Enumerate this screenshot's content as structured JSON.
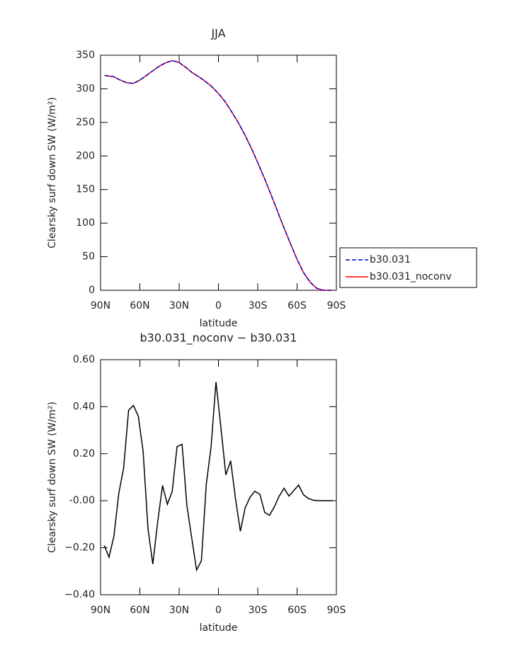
{
  "chart_data": [
    {
      "type": "line",
      "title": "JJA",
      "xlabel": "latitude",
      "ylabel": "Clearsky surf down SW (W/m²)",
      "x": [
        87,
        80,
        75,
        70,
        65,
        60,
        55,
        50,
        45,
        40,
        35,
        30,
        25,
        20,
        15,
        10,
        5,
        0,
        -5,
        -10,
        -15,
        -20,
        -25,
        -30,
        -35,
        -40,
        -45,
        -50,
        -55,
        -60,
        -65,
        -70,
        -75,
        -80,
        -87
      ],
      "series": [
        {
          "name": "b30.031",
          "color": "#0000cc",
          "dash": true,
          "values": [
            320,
            318,
            313,
            309,
            308,
            313,
            320,
            327,
            334,
            339,
            342,
            339,
            332,
            324,
            318,
            311,
            303,
            293,
            281,
            266,
            250,
            232,
            212,
            190,
            167,
            143,
            118,
            93,
            69,
            46,
            26,
            12,
            3,
            0,
            0
          ]
        },
        {
          "name": "b30.031_noconv",
          "color": "#ff0000",
          "dash": false,
          "values": [
            320,
            318,
            313,
            309,
            308,
            313,
            320,
            327,
            334,
            339,
            342,
            339,
            332,
            324,
            318,
            311,
            303,
            293,
            281,
            266,
            250,
            232,
            212,
            190,
            167,
            143,
            118,
            93,
            69,
            46,
            26,
            12,
            3,
            0,
            0
          ]
        }
      ],
      "xlim": [
        90,
        -90
      ],
      "xticks": [
        {
          "value": 90,
          "label": "90N"
        },
        {
          "value": 60,
          "label": "60N"
        },
        {
          "value": 30,
          "label": "30N"
        },
        0,
        {
          "value": -30,
          "label": "30S"
        },
        {
          "value": -60,
          "label": "60S"
        },
        {
          "value": -90,
          "label": "90S"
        }
      ],
      "ylim": [
        0,
        350
      ],
      "yticks": [
        0,
        50,
        100,
        150,
        200,
        250,
        300,
        350
      ],
      "legend": "right"
    },
    {
      "type": "line",
      "title": "b30.031_noconv − b30.031",
      "xlabel": "latitude",
      "ylabel": "Clearsky surf down SW (W/m²)",
      "x": [
        87.2,
        83.5,
        79.8,
        76.1,
        72.4,
        68.6,
        64.9,
        61.2,
        57.5,
        53.8,
        50.1,
        46.4,
        42.7,
        39.0,
        35.3,
        31.6,
        27.8,
        24.1,
        20.4,
        16.7,
        13.0,
        9.3,
        5.6,
        1.9,
        -1.9,
        -5.6,
        -9.3,
        -13.0,
        -16.7,
        -20.4,
        -24.1,
        -27.8,
        -31.6,
        -35.3,
        -39.0,
        -42.7,
        -46.4,
        -50.1,
        -53.8,
        -57.5,
        -61.2,
        -64.9,
        -68.6,
        -72.4,
        -76.1,
        -79.8,
        -83.5,
        -87.2
      ],
      "series": [
        {
          "color": "#000000",
          "values": [
            -0.19,
            -0.24,
            -0.15,
            0.03,
            0.14,
            0.385,
            0.405,
            0.36,
            0.21,
            -0.12,
            -0.27,
            -0.09,
            0.065,
            -0.015,
            0.04,
            0.23,
            0.24,
            -0.02,
            -0.16,
            -0.295,
            -0.255,
            0.07,
            0.23,
            0.505,
            0.31,
            0.11,
            0.17,
            0.01,
            -0.13,
            -0.03,
            0.015,
            0.04,
            0.027,
            -0.05,
            -0.062,
            -0.025,
            0.02,
            0.053,
            0.02,
            0.043,
            0.067,
            0.025,
            0.01,
            0.002,
            0,
            0,
            0,
            0
          ]
        }
      ],
      "xlim": [
        90,
        -90
      ],
      "xticks": [
        {
          "value": 90,
          "label": "90N"
        },
        {
          "value": 60,
          "label": "60N"
        },
        {
          "value": 30,
          "label": "30N"
        },
        0,
        {
          "value": -30,
          "label": "30S"
        },
        {
          "value": -60,
          "label": "60S"
        },
        {
          "value": -90,
          "label": "90S"
        }
      ],
      "ylim": [
        -0.4,
        0.6
      ],
      "yticks": [
        {
          "value": -0.4,
          "label": "−0.40"
        },
        {
          "value": -0.2,
          "label": "−0.20"
        },
        {
          "value": 0,
          "label": "-0.00"
        },
        {
          "value": 0.2,
          "label": "0.20"
        },
        {
          "value": 0.4,
          "label": "0.40"
        },
        {
          "value": 0.6,
          "label": "0.60"
        }
      ]
    }
  ]
}
